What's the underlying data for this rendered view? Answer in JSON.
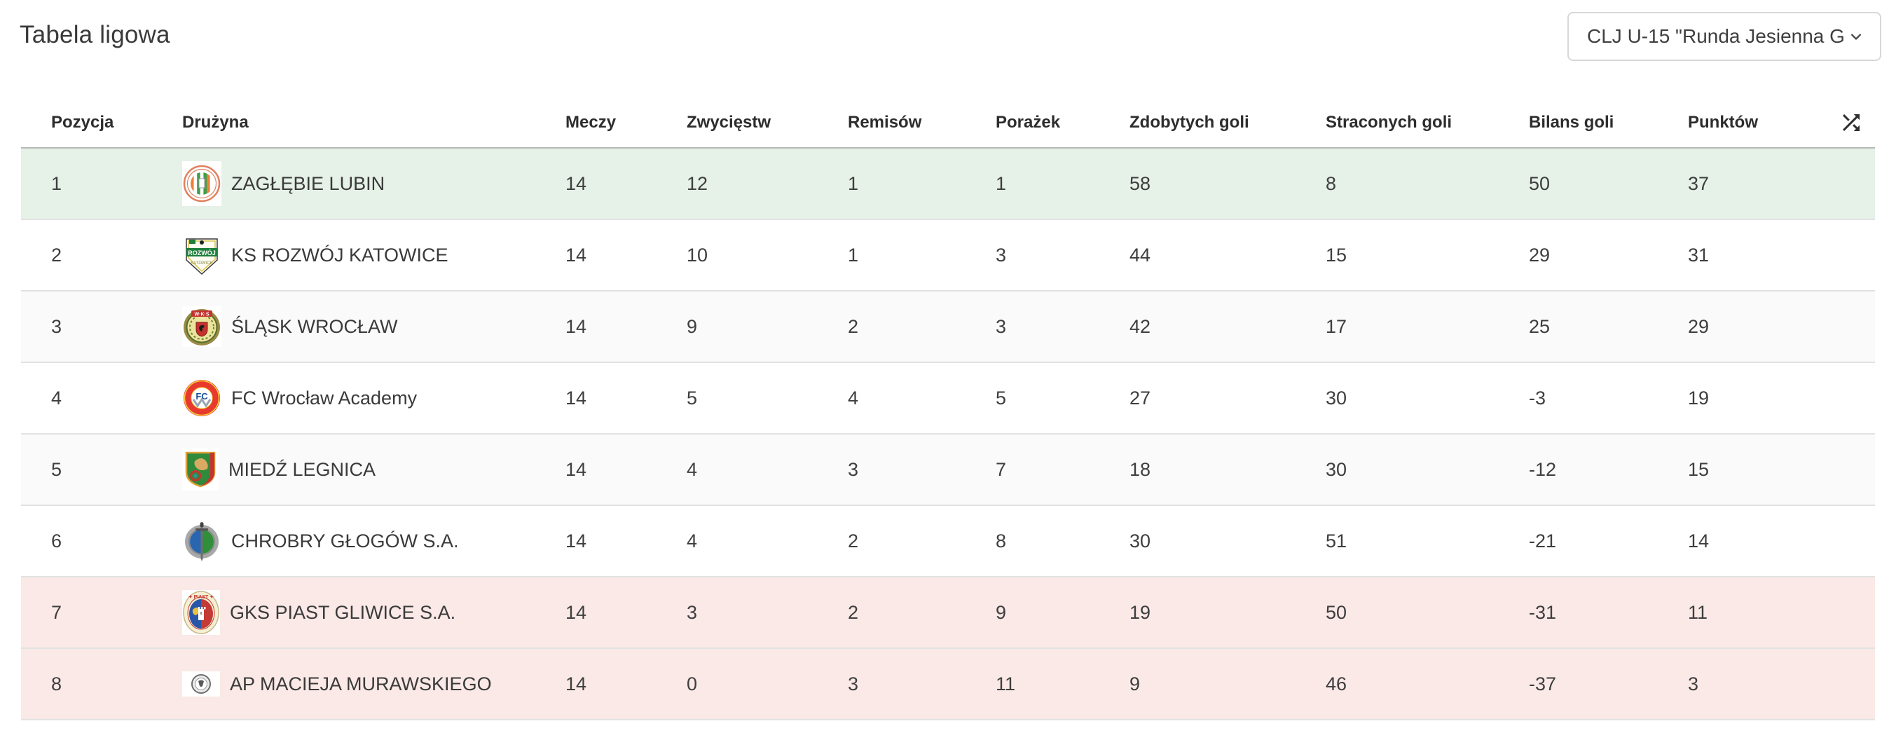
{
  "page": {
    "title": "Tabela ligowa"
  },
  "filter": {
    "value": "CLJ U-15 \"Runda Jesienna G...",
    "chevron_icon": "chevron-down-icon"
  },
  "table": {
    "columns": [
      {
        "key": "position",
        "label": "Pozycja"
      },
      {
        "key": "team",
        "label": "Drużyna"
      },
      {
        "key": "matches",
        "label": "Meczy"
      },
      {
        "key": "wins",
        "label": "Zwycięstw"
      },
      {
        "key": "draws",
        "label": "Remisów"
      },
      {
        "key": "losses",
        "label": "Porażek"
      },
      {
        "key": "goals_for",
        "label": "Zdobytych goli"
      },
      {
        "key": "goals_against",
        "label": "Straconych goli"
      },
      {
        "key": "goal_diff",
        "label": "Bilans goli"
      },
      {
        "key": "points",
        "label": "Punktów"
      },
      {
        "key": "shuffle",
        "label": "",
        "icon": "shuffle-icon"
      }
    ],
    "rows": [
      {
        "position": "1",
        "team": "ZAGŁĘBIE LUBIN",
        "logo": "zaglebie-lubin",
        "matches": "14",
        "wins": "12",
        "draws": "1",
        "losses": "1",
        "goals_for": "58",
        "goals_against": "8",
        "goal_diff": "50",
        "points": "37",
        "highlight": "promotion"
      },
      {
        "position": "2",
        "team": "KS ROZWÓJ KATOWICE",
        "logo": "rozwoj-katowice",
        "matches": "14",
        "wins": "10",
        "draws": "1",
        "losses": "3",
        "goals_for": "44",
        "goals_against": "15",
        "goal_diff": "29",
        "points": "31",
        "highlight": "none"
      },
      {
        "position": "3",
        "team": "ŚLĄSK WROCŁAW",
        "logo": "slask-wroclaw",
        "matches": "14",
        "wins": "9",
        "draws": "2",
        "losses": "3",
        "goals_for": "42",
        "goals_against": "17",
        "goal_diff": "25",
        "points": "29",
        "highlight": "none"
      },
      {
        "position": "4",
        "team": "FC Wrocław Academy",
        "logo": "fc-wroclaw-academy",
        "matches": "14",
        "wins": "5",
        "draws": "4",
        "losses": "5",
        "goals_for": "27",
        "goals_against": "30",
        "goal_diff": "-3",
        "points": "19",
        "highlight": "none"
      },
      {
        "position": "5",
        "team": "MIEDŹ LEGNICA",
        "logo": "miedz-legnica",
        "matches": "14",
        "wins": "4",
        "draws": "3",
        "losses": "7",
        "goals_for": "18",
        "goals_against": "30",
        "goal_diff": "-12",
        "points": "15",
        "highlight": "none"
      },
      {
        "position": "6",
        "team": "CHROBRY GŁOGÓW S.A.",
        "logo": "chrobry-glogow",
        "matches": "14",
        "wins": "4",
        "draws": "2",
        "losses": "8",
        "goals_for": "30",
        "goals_against": "51",
        "goal_diff": "-21",
        "points": "14",
        "highlight": "none"
      },
      {
        "position": "7",
        "team": "GKS PIAST GLIWICE S.A.",
        "logo": "gks-piast-gliwice",
        "matches": "14",
        "wins": "3",
        "draws": "2",
        "losses": "9",
        "goals_for": "19",
        "goals_against": "50",
        "goal_diff": "-31",
        "points": "11",
        "highlight": "relegation"
      },
      {
        "position": "8",
        "team": "AP MACIEJA MURAWSKIEGO",
        "logo": "ap-macieja-murawskiego",
        "matches": "14",
        "wins": "0",
        "draws": "3",
        "losses": "11",
        "goals_for": "9",
        "goals_against": "46",
        "goal_diff": "-37",
        "points": "3",
        "highlight": "relegation"
      }
    ]
  },
  "icons": {
    "header_action": "shuffle-icon",
    "dropdown": "chevron-down-icon"
  },
  "colors": {
    "promotion_row": "#e6f1e7",
    "relegation_row": "#fae9e7",
    "row_alt": "#fafafa",
    "row_default": "#ffffff",
    "header_divider": "#b9b9b9",
    "row_divider": "#e2e2e2",
    "text": "#3e3e3e",
    "header_text": "#2d2d2d",
    "dropdown_border": "#d8d8d8"
  }
}
